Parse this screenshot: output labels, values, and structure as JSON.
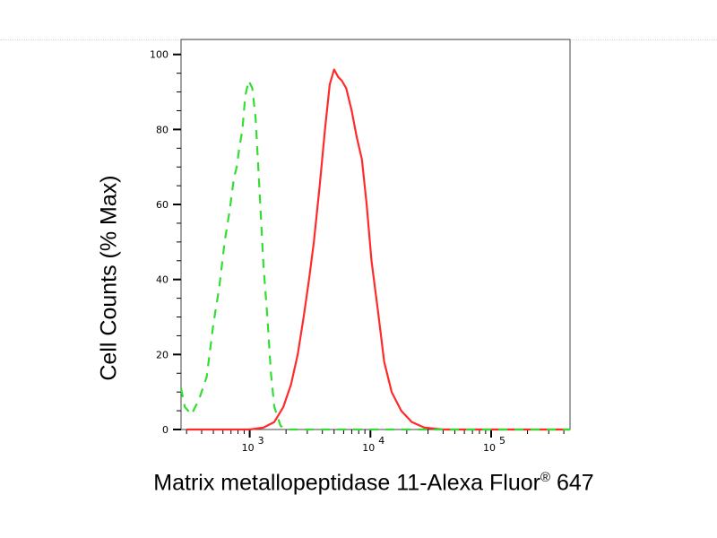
{
  "chart_data": {
    "type": "line",
    "xlabel": "Matrix metallopeptidase 11-Alexa Fluor",
    "xlabel_sup": "®",
    "xlabel_suffix": " 647",
    "ylabel": "Cell Counts (% Max)",
    "x_scale": "log",
    "xlim": [
      270,
      450000
    ],
    "ylim": [
      0,
      104
    ],
    "y_ticks": [
      0,
      20,
      40,
      60,
      80,
      100
    ],
    "x_ticks": [
      {
        "value": 1000,
        "base": "10",
        "exp": "3"
      },
      {
        "value": 10000,
        "base": "10",
        "exp": "4"
      },
      {
        "value": 100000,
        "base": "10",
        "exp": "5"
      }
    ],
    "grid": false,
    "series": [
      {
        "color": "#ff2a2a",
        "style": "solid",
        "points": [
          [
            300,
            0
          ],
          [
            1000,
            0
          ],
          [
            1300,
            0.5
          ],
          [
            1600,
            2
          ],
          [
            1900,
            6
          ],
          [
            2200,
            12
          ],
          [
            2500,
            20
          ],
          [
            2800,
            30
          ],
          [
            3100,
            40
          ],
          [
            3400,
            50
          ],
          [
            3800,
            65
          ],
          [
            4200,
            80
          ],
          [
            4600,
            92
          ],
          [
            5000,
            96
          ],
          [
            5400,
            94
          ],
          [
            5800,
            93
          ],
          [
            6300,
            91
          ],
          [
            7000,
            85
          ],
          [
            7700,
            78
          ],
          [
            8500,
            72
          ],
          [
            9300,
            60
          ],
          [
            10200,
            45
          ],
          [
            11500,
            32
          ],
          [
            13000,
            18
          ],
          [
            15000,
            10
          ],
          [
            18000,
            5
          ],
          [
            22000,
            2
          ],
          [
            28000,
            0.5
          ],
          [
            40000,
            0
          ],
          [
            450000,
            0
          ]
        ]
      },
      {
        "color": "#33dd33",
        "style": "dashed",
        "points": [
          [
            270,
            11
          ],
          [
            290,
            6
          ],
          [
            330,
            4
          ],
          [
            380,
            8
          ],
          [
            440,
            14
          ],
          [
            500,
            28
          ],
          [
            560,
            38
          ],
          [
            620,
            50
          ],
          [
            680,
            58
          ],
          [
            740,
            67
          ],
          [
            780,
            70
          ],
          [
            820,
            75
          ],
          [
            870,
            80
          ],
          [
            920,
            89
          ],
          [
            980,
            93
          ],
          [
            1050,
            91
          ],
          [
            1120,
            83
          ],
          [
            1200,
            65
          ],
          [
            1300,
            44
          ],
          [
            1400,
            30
          ],
          [
            1500,
            15
          ],
          [
            1600,
            6
          ],
          [
            1800,
            1
          ],
          [
            2000,
            0
          ],
          [
            450000,
            0
          ]
        ]
      }
    ]
  }
}
